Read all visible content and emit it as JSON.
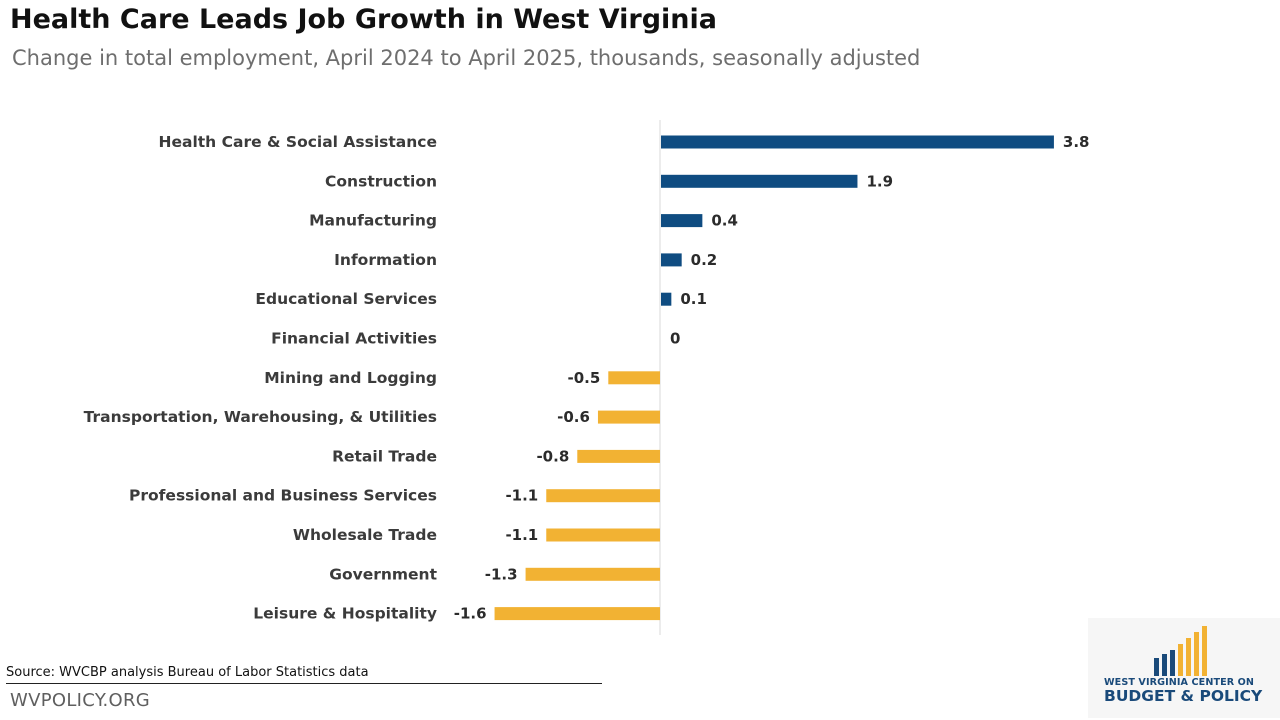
{
  "title": "Health Care Leads Job Growth in West Virginia",
  "subtitle": "Change in total employment, April 2024 to April 2025, thousands, seasonally adjusted",
  "source": "Source: WVCBP analysis Bureau of Labor Statistics data",
  "site": "WVPOLICY.ORG",
  "logo": {
    "line1": "WEST VIRGINIA CENTER ON",
    "line2": "BUDGET & POLICY"
  },
  "colors": {
    "positive": "#0f4c81",
    "negative": "#f2b233",
    "logo_blue": "#1a4a7a",
    "logo_gold": "#f2b233"
  },
  "chart_data": {
    "type": "bar",
    "orientation": "horizontal",
    "categories": [
      "Health Care & Social Assistance",
      "Construction",
      "Manufacturing",
      "Information",
      "Educational Services",
      "Financial Activities",
      "Mining and Logging",
      "Transportation, Warehousing, & Utilities",
      "Retail Trade",
      "Professional and Business Services",
      "Wholesale Trade",
      "Government",
      "Leisure & Hospitality"
    ],
    "values": [
      3.8,
      1.9,
      0.4,
      0.2,
      0.1,
      0,
      -0.5,
      -0.6,
      -0.8,
      -1.1,
      -1.1,
      -1.3,
      -1.6
    ],
    "value_labels": [
      "3.8",
      "1.9",
      "0.4",
      "0.2",
      "0.1",
      "0",
      "-0.5",
      "-0.6",
      "-0.8",
      "-1.1",
      "-1.1",
      "-1.3",
      "-1.6"
    ],
    "title": "Health Care Leads Job Growth in West Virginia",
    "subtitle": "Change in total employment, April 2024 to April 2025, thousands, seasonally adjusted",
    "xlim": [
      -1.6,
      3.8
    ],
    "grid": false,
    "legend": "none"
  }
}
